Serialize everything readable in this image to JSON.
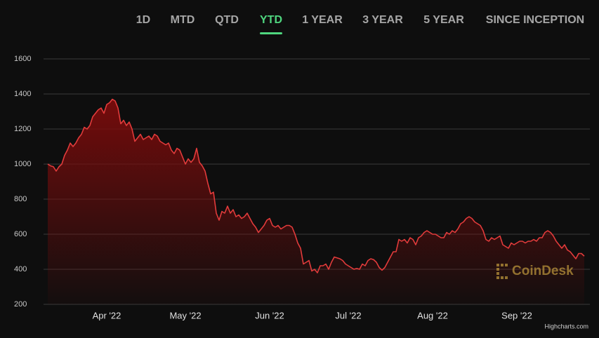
{
  "tabs": [
    "1D",
    "MTD",
    "QTD",
    "YTD",
    "1 YEAR",
    "3 YEAR",
    "5 YEAR",
    "SINCE INCEPTION"
  ],
  "active_tab": "YTD",
  "chart_data": {
    "type": "area",
    "color": "#e23b3b",
    "fill_color": "#7a0c0c",
    "grid": true,
    "watermark": "CoinDesk",
    "credits": "Highcharts.com",
    "ylim": [
      200,
      1600
    ],
    "yticks": [
      200,
      400,
      600,
      800,
      1000,
      1200,
      1400,
      1600
    ],
    "categories": [
      null,
      null,
      null,
      null,
      null,
      null,
      null,
      null,
      null,
      null,
      null,
      null,
      null,
      null,
      null,
      null,
      null,
      null,
      null,
      null,
      null,
      "Apr '22",
      null,
      null,
      null,
      null,
      null,
      null,
      null,
      null,
      null,
      null,
      null,
      null,
      null,
      null,
      null,
      null,
      null,
      null,
      null,
      null,
      null,
      null,
      null,
      null,
      null,
      null,
      null,
      "May '22",
      null,
      null,
      null,
      null,
      null,
      null,
      null,
      null,
      null,
      null,
      null,
      null,
      null,
      null,
      null,
      null,
      null,
      null,
      null,
      null,
      null,
      null,
      null,
      null,
      null,
      null,
      null,
      null,
      null,
      "Jun '22",
      null,
      null,
      null,
      null,
      null,
      null,
      null,
      null,
      null,
      null,
      null,
      null,
      null,
      null,
      null,
      null,
      null,
      null,
      null,
      null,
      null,
      null,
      null,
      null,
      null,
      null,
      null,
      "Jul '22",
      null,
      null,
      null,
      null,
      null,
      null,
      null,
      null,
      null,
      null,
      null,
      null,
      null,
      null,
      null,
      null,
      null,
      null,
      null,
      null,
      null,
      null,
      null,
      null,
      null,
      null,
      null,
      null,
      null,
      "Aug '22",
      null,
      null,
      null,
      null,
      null,
      null,
      null,
      null,
      null,
      null,
      null,
      null,
      null,
      null,
      null,
      null,
      null,
      null,
      null,
      null,
      null,
      null,
      null,
      null,
      null,
      null,
      null,
      null,
      null,
      "Sep '22",
      null,
      null,
      null,
      null,
      null,
      null,
      null,
      null,
      null,
      null,
      null,
      null,
      null,
      null,
      null,
      null,
      null,
      null,
      null,
      null,
      null,
      null,
      null,
      null
    ],
    "values": [
      1000,
      990,
      985,
      960,
      985,
      1000,
      1050,
      1080,
      1120,
      1100,
      1120,
      1150,
      1170,
      1210,
      1200,
      1220,
      1270,
      1290,
      1310,
      1320,
      1290,
      1340,
      1350,
      1370,
      1360,
      1320,
      1230,
      1250,
      1220,
      1240,
      1200,
      1130,
      1150,
      1170,
      1140,
      1150,
      1160,
      1140,
      1170,
      1160,
      1130,
      1120,
      1110,
      1120,
      1080,
      1060,
      1090,
      1080,
      1040,
      1000,
      1030,
      1010,
      1030,
      1090,
      1010,
      990,
      960,
      890,
      830,
      840,
      720,
      680,
      730,
      720,
      760,
      720,
      740,
      700,
      710,
      690,
      700,
      720,
      690,
      660,
      640,
      610,
      630,
      650,
      680,
      690,
      650,
      640,
      650,
      630,
      640,
      650,
      650,
      640,
      600,
      550,
      520,
      430,
      440,
      450,
      390,
      400,
      380,
      420,
      420,
      430,
      400,
      440,
      470,
      465,
      460,
      450,
      430,
      420,
      410,
      400,
      405,
      400,
      430,
      420,
      450,
      460,
      455,
      440,
      410,
      395,
      410,
      440,
      470,
      500,
      500,
      570,
      560,
      570,
      550,
      580,
      570,
      540,
      580,
      590,
      610,
      620,
      610,
      600,
      600,
      590,
      580,
      580,
      610,
      600,
      620,
      610,
      630,
      660,
      670,
      690,
      700,
      690,
      670,
      660,
      650,
      620,
      570,
      560,
      580,
      570,
      580,
      590,
      540,
      530,
      520,
      550,
      540,
      550,
      560,
      560,
      550,
      560,
      560,
      570,
      560,
      580,
      580,
      610,
      620,
      610,
      590,
      560,
      540,
      520,
      540,
      510,
      500,
      480,
      460,
      490,
      490,
      475
    ]
  }
}
